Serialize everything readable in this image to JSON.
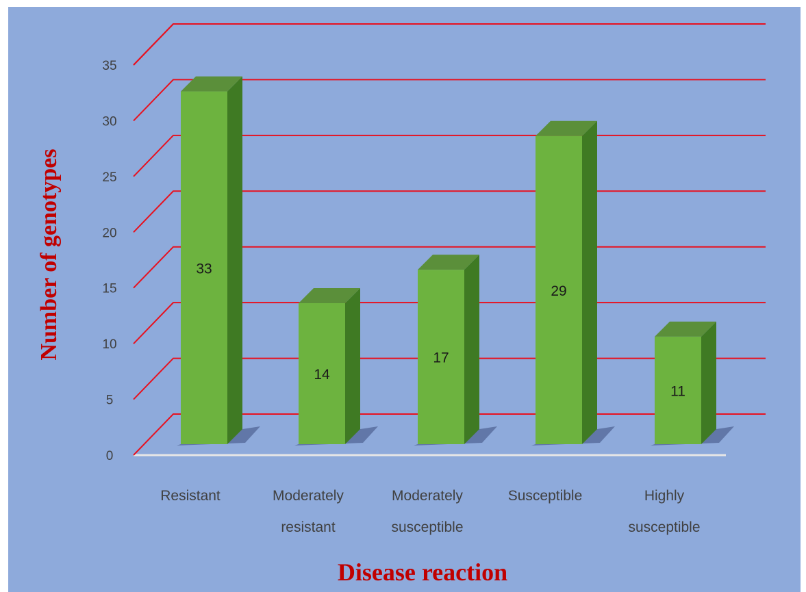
{
  "chart_data": {
    "type": "bar",
    "title": "",
    "xlabel": "Disease reaction",
    "ylabel": "Number of genotypes",
    "categories": [
      [
        "Resistant"
      ],
      [
        "Moderately",
        "resistant"
      ],
      [
        "Moderately",
        "susceptible"
      ],
      [
        "Susceptible"
      ],
      [
        "Highly",
        "susceptible"
      ]
    ],
    "values": [
      33,
      14,
      17,
      29,
      11
    ],
    "ylim": [
      0,
      35
    ],
    "yticks": [
      0,
      5,
      10,
      15,
      20,
      25,
      30,
      35
    ],
    "grid": true,
    "legend": "none",
    "colors": {
      "background": "#8eaadb",
      "gridline": "#e8101e",
      "bar_front": "#6db33f",
      "bar_side": "#3f7a23",
      "bar_top": "#5b8f3a",
      "baseline": "#e6e6e6",
      "axis_title": "#c00000"
    }
  }
}
